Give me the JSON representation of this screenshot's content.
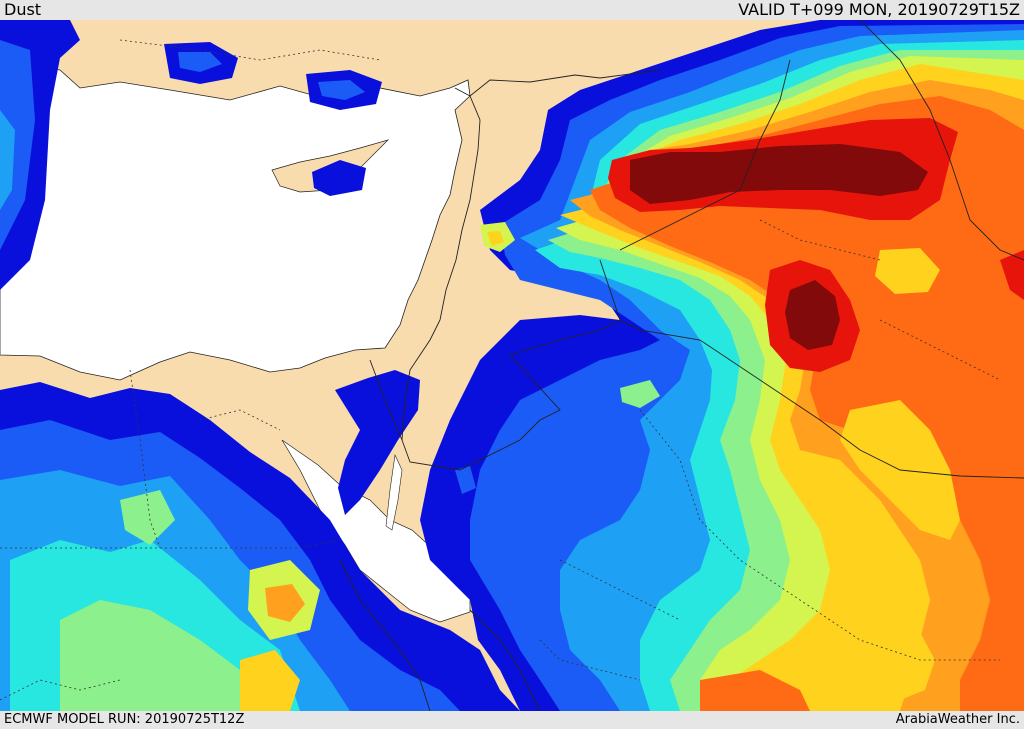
{
  "header": {
    "title": "Dust",
    "valid": "VALID T+099 MON, 20190729T15Z"
  },
  "footer": {
    "model_run": "ECMWF MODEL RUN: 20190725T12Z",
    "credit": "ArabiaWeather Inc."
  },
  "palette": {
    "land": "#f9dcad",
    "water": "#ffffff",
    "level1_dark_blue": "#0a10dc",
    "level2_blue": "#1a5cf5",
    "level3_sky": "#1ea0f5",
    "level4_cyan": "#28e6e0",
    "level5_green": "#8cf08c",
    "level6_yellow_green": "#d4f550",
    "level7_yellow": "#ffd21e",
    "level8_orange": "#ffa01e",
    "level9_dark_orange": "#ff6a14",
    "level10_red": "#e6140a",
    "level11_maroon": "#820a0a"
  }
}
